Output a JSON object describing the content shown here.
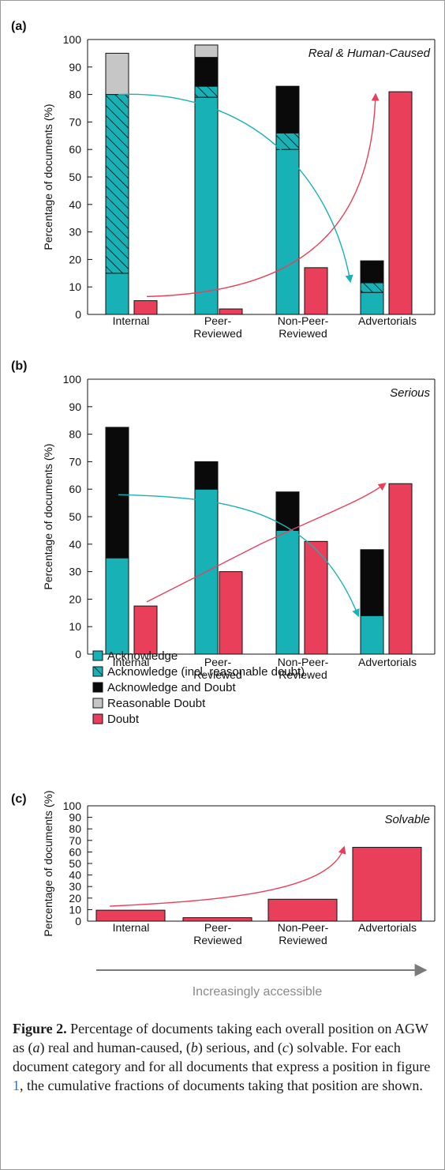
{
  "chart_data": [
    {
      "type": "bar",
      "panel_label": "(a)",
      "corner_title": "Real & Human-Caused",
      "ylabel": "Percentage of documents (%)",
      "ylim": [
        0,
        100
      ],
      "yticks": [
        0,
        10,
        20,
        30,
        40,
        50,
        60,
        70,
        80,
        90,
        100
      ],
      "categories": [
        "Internal",
        "Peer-Reviewed",
        "Non-Peer-Reviewed",
        "Advertorials"
      ],
      "stacked_series": [
        {
          "name": "Acknowledge",
          "values": [
            15,
            79,
            60,
            8
          ]
        },
        {
          "name": "Acknowledge (incl. reasonable doubt)",
          "values": [
            65,
            4,
            6,
            3.5
          ]
        },
        {
          "name": "Acknowledge and Doubt",
          "values": [
            0,
            10.5,
            17,
            8
          ]
        },
        {
          "name": "Reasonable Doubt",
          "values": [
            15,
            4.5,
            0,
            0
          ]
        }
      ],
      "doubt_series": {
        "name": "Doubt",
        "values": [
          5,
          2,
          17,
          81
        ]
      },
      "arrows": [
        {
          "color": "teal",
          "from": "Internal acknowledge top (~80%)",
          "to": "Advertorials acknowledge (~11%)"
        },
        {
          "color": "red",
          "from": "Internal doubt (~6%)",
          "to": "Advertorials doubt (~81%)"
        }
      ]
    },
    {
      "type": "bar",
      "panel_label": "(b)",
      "corner_title": "Serious",
      "ylabel": "Percentage of documents (%)",
      "ylim": [
        0,
        100
      ],
      "yticks": [
        0,
        10,
        20,
        30,
        40,
        50,
        60,
        70,
        80,
        90,
        100
      ],
      "categories": [
        "Internal",
        "Peer-Reviewed",
        "Non-Peer-Reviewed",
        "Advertorials"
      ],
      "stacked_series": [
        {
          "name": "Acknowledge",
          "values": [
            35,
            60,
            45,
            14
          ]
        },
        {
          "name": "Acknowledge (incl. reasonable doubt)",
          "values": [
            0,
            0,
            0,
            0
          ]
        },
        {
          "name": "Acknowledge and Doubt",
          "values": [
            47.5,
            10,
            14,
            24
          ]
        },
        {
          "name": "Reasonable Doubt",
          "values": [
            0,
            0,
            0,
            0
          ]
        }
      ],
      "doubt_series": {
        "name": "Doubt",
        "values": [
          17.5,
          30,
          41,
          62
        ]
      },
      "arrows": [
        {
          "color": "teal",
          "from": "Internal acknowledge top (~58%)",
          "to": "Advertorials acknowledge (~14%)"
        },
        {
          "color": "red",
          "from": "Internal doubt (~19%)",
          "to": "Advertorials doubt (~62%)"
        }
      ]
    },
    {
      "type": "bar",
      "panel_label": "(c)",
      "corner_title": "Solvable",
      "ylabel": "Percentage of documents (%)",
      "ylim": [
        0,
        100
      ],
      "yticks": [
        0,
        10,
        20,
        30,
        40,
        50,
        60,
        70,
        80,
        90,
        100
      ],
      "categories": [
        "Internal",
        "Peer-Reviewed",
        "Non-Peer-Reviewed",
        "Advertorials"
      ],
      "doubt_series": {
        "name": "Doubt",
        "values": [
          9.5,
          3,
          19,
          64
        ]
      },
      "legend": {
        "placement": "top-left",
        "entries": [
          {
            "name": "Acknowledge",
            "style": "teal"
          },
          {
            "name": "Acknowledge (incl. reasonable doubt)",
            "style": "hatch"
          },
          {
            "name": "Acknowledge and Doubt",
            "style": "black"
          },
          {
            "name": "Reasonable Doubt",
            "style": "grey"
          },
          {
            "name": "Doubt",
            "style": "red"
          }
        ]
      },
      "arrows": [
        {
          "color": "red",
          "from": "Internal doubt (~13%)",
          "to": "Advertorials doubt (~64%)"
        }
      ]
    }
  ],
  "category_labels": [
    [
      "Internal"
    ],
    [
      "Peer-",
      "Reviewed"
    ],
    [
      "Non-Peer-",
      "Reviewed"
    ],
    [
      "Advertorials"
    ]
  ],
  "accessibility_arrow_label": "Increasingly accessible",
  "colors": {
    "acknowledge": "#18b2b6",
    "doubt": "#ea3f5a",
    "acknowledge_and_doubt": "#0a0a0a",
    "reasonable_doubt": "#c6c6c6",
    "teal_arrow": "#18b2b6",
    "red_arrow": "#ea3f5a",
    "gray_arrow": "#7a7a7a"
  },
  "caption": {
    "label": "Figure 2.",
    "part1": " Percentage of documents taking each overall position on AGW as (",
    "a": "a",
    "part2": ") real and human-caused, (",
    "b": "b",
    "part3": ") serious, and (",
    "c": "c",
    "part4": ") solvable. For each document category and for all documents that express a position in figure ",
    "ref": "1",
    "part5": ", the cumulative fractions of documents taking that position are shown."
  }
}
